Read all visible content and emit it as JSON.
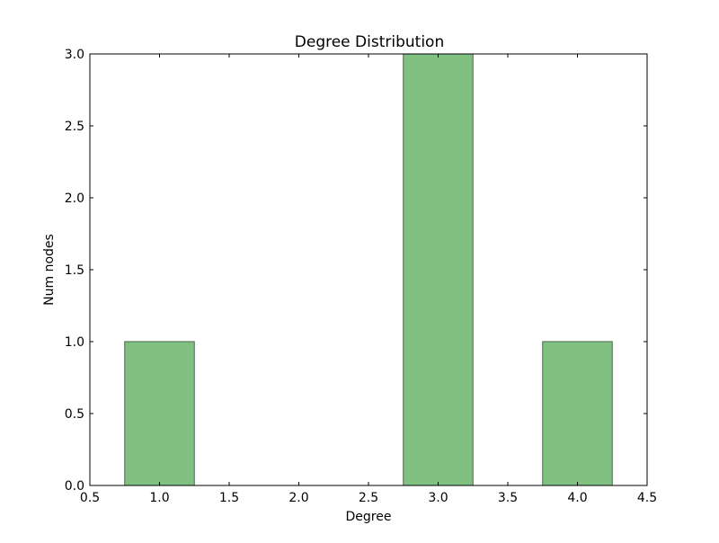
{
  "chart_data": {
    "type": "bar",
    "title": "Degree Distribution",
    "xlabel": "Degree",
    "ylabel": "Num nodes",
    "xlim": [
      0.5,
      4.5
    ],
    "ylim": [
      0.0,
      3.0
    ],
    "xticks": [
      0.5,
      1.0,
      1.5,
      2.0,
      2.5,
      3.0,
      3.5,
      4.0,
      4.5
    ],
    "xtick_labels": [
      "0.5",
      "1.0",
      "1.5",
      "2.0",
      "2.5",
      "3.0",
      "3.5",
      "4.0",
      "4.5"
    ],
    "yticks": [
      0.0,
      0.5,
      1.0,
      1.5,
      2.0,
      2.5,
      3.0
    ],
    "ytick_labels": [
      "0.0",
      "0.5",
      "1.0",
      "1.5",
      "2.0",
      "2.5",
      "3.0"
    ],
    "bar_width": 0.5,
    "categories": [
      1,
      2,
      3,
      4
    ],
    "values": [
      1,
      0,
      3,
      1
    ],
    "grid": false,
    "colors": {
      "bar_fill": "#80c080",
      "bar_edge": "#4d664d",
      "axis": "#000000"
    }
  }
}
